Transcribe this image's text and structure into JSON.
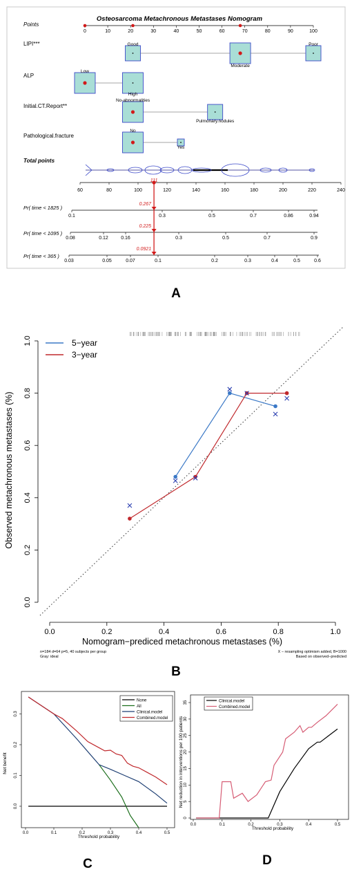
{
  "panels": {
    "a": "A",
    "b": "B",
    "c": "C",
    "d": "D"
  },
  "chart_data": [
    {
      "type": "nomogram",
      "panel": "A",
      "title": "Osteosarcoma Metachronous Metastases Nomogram",
      "points_axis": {
        "label": "Points",
        "ticks": [
          0,
          10,
          20,
          30,
          40,
          50,
          60,
          70,
          80,
          90,
          100
        ],
        "markers": [
          0,
          21,
          68
        ]
      },
      "variables": [
        {
          "name": "LIPI***",
          "levels": [
            {
              "label": "Good",
              "points": 21,
              "size": "small"
            },
            {
              "label": "Moderate",
              "points": 68,
              "size": "large"
            },
            {
              "label": "Poor",
              "points": 100,
              "size": "small"
            }
          ]
        },
        {
          "name": "ALP",
          "levels": [
            {
              "label": "Low",
              "points": 0,
              "size": "large"
            },
            {
              "label": "High",
              "points": 21,
              "size": "large"
            }
          ]
        },
        {
          "name": "Initial.CT.Report**",
          "levels": [
            {
              "label": "No-abnormalities",
              "points": 21,
              "size": "large"
            },
            {
              "label": "Pulmonary.nodules",
              "points": 57,
              "size": "small"
            }
          ]
        },
        {
          "name": "Pathological.fracture",
          "levels": [
            {
              "label": "No",
              "points": 21,
              "size": "large"
            },
            {
              "label": "Yes",
              "points": 42,
              "size": "tiny"
            }
          ]
        }
      ],
      "total_points": {
        "label": "Total points",
        "ticks": [
          60,
          80,
          100,
          120,
          140,
          160,
          180,
          200,
          220,
          240
        ],
        "marker": 111,
        "marker_label": "111"
      },
      "probabilities": [
        {
          "label": "Pr( time < 1825 )",
          "ticks": [
            "0.1",
            "0.3",
            "0.5",
            "0.7",
            "0.86",
            "0.94"
          ],
          "value": "0.267"
        },
        {
          "label": "Pr( time < 1095 )",
          "ticks": [
            "0.08",
            "0.12",
            "0.16",
            "0.3",
            "0.5",
            "0.7",
            "0.9"
          ],
          "value": "0.225"
        },
        {
          "label": "Pr( time < 365 )",
          "ticks": [
            "0.03",
            "0.05",
            "0.07",
            "0.1",
            "0.2",
            "0.3",
            "0.4",
            "0.5",
            "0.6"
          ],
          "value": "0.0921"
        }
      ]
    },
    {
      "type": "line",
      "panel": "B",
      "xlabel": "Nomogram−prediced metachronous metastases (%)",
      "ylabel": "Observed metachronous metastases (%)",
      "xlim": [
        0,
        1
      ],
      "ylim": [
        0,
        1
      ],
      "ticks": [
        "0.0",
        "0.2",
        "0.4",
        "0.6",
        "0.8",
        "1.0"
      ],
      "legend": "top-left",
      "series": [
        {
          "name": "5−year",
          "color": "#3a78c6",
          "x": [
            0.44,
            0.63,
            0.79
          ],
          "y": [
            0.48,
            0.8,
            0.75
          ],
          "x_cross": [
            0.44,
            0.63,
            0.79
          ],
          "y_cross": [
            0.465,
            0.815,
            0.72
          ]
        },
        {
          "name": "3−year",
          "color": "#c0282c",
          "x": [
            0.28,
            0.51,
            0.69,
            0.83
          ],
          "y": [
            0.32,
            0.48,
            0.8,
            0.8
          ],
          "x_cross": [
            0.28,
            0.51,
            0.69,
            0.83
          ],
          "y_cross": [
            0.37,
            0.475,
            0.8,
            0.78
          ]
        }
      ],
      "note_left_1": "n=184 d=64 p=5, 40 subjects per group",
      "note_left_2": "Gray: ideal",
      "note_right_1": "X − resampling optimism added, B=1000",
      "note_right_2": "Based on observed−predicted"
    },
    {
      "type": "line",
      "panel": "C",
      "xlabel": "Threshold probability",
      "ylabel": "Net benefit",
      "xlim": [
        0,
        0.5
      ],
      "ylim": [
        -0.06,
        0.36
      ],
      "x_ticks": [
        "0.0",
        "0.1",
        "0.2",
        "0.3",
        "0.4",
        "0.5"
      ],
      "y_ticks": [
        "0.0",
        "0.1",
        "0.2",
        "0.3"
      ],
      "legend": "top-right",
      "series": [
        {
          "name": "None",
          "color": "#000000",
          "x": [
            0.01,
            0.5
          ],
          "y": [
            0,
            0
          ]
        },
        {
          "name": "All",
          "color": "#1b6e1b",
          "x": [
            0.26,
            0.3,
            0.34,
            0.37,
            0.4
          ],
          "y": [
            0.135,
            0.085,
            0.03,
            -0.03,
            -0.07
          ]
        },
        {
          "name": "Clinical.model",
          "color": "#1e3f73",
          "x": [
            0.01,
            0.1,
            0.18,
            0.26,
            0.3,
            0.35,
            0.4,
            0.43,
            0.46,
            0.5
          ],
          "y": [
            0.355,
            0.3,
            0.22,
            0.135,
            0.12,
            0.1,
            0.08,
            0.06,
            0.04,
            0.01
          ]
        },
        {
          "name": "Combined.model",
          "color": "#c0282c",
          "x": [
            0.01,
            0.1,
            0.13,
            0.18,
            0.22,
            0.26,
            0.28,
            0.3,
            0.32,
            0.34,
            0.36,
            0.38,
            0.4,
            0.43,
            0.46,
            0.5
          ],
          "y": [
            0.355,
            0.3,
            0.285,
            0.245,
            0.21,
            0.19,
            0.18,
            0.182,
            0.17,
            0.165,
            0.14,
            0.13,
            0.125,
            0.11,
            0.095,
            0.07
          ]
        }
      ]
    },
    {
      "type": "line",
      "panel": "D",
      "xlabel": "Threshold probability",
      "ylabel": "Net reduction in interventions per 100 patients",
      "xlim": [
        0,
        0.5
      ],
      "ylim": [
        -1,
        36
      ],
      "x_ticks": [
        "0.0",
        "0.1",
        "0.2",
        "0.3",
        "0.4",
        "0.5"
      ],
      "y_ticks": [
        "0",
        "5",
        "10",
        "15",
        "20",
        "25",
        "30",
        "35"
      ],
      "legend": "top-left",
      "series": [
        {
          "name": "Clinical.model",
          "color": "#000000",
          "x": [
            0.01,
            0.25,
            0.26,
            0.3,
            0.35,
            0.4,
            0.43,
            0.44,
            0.47,
            0.5
          ],
          "y": [
            0,
            0,
            0,
            8,
            15,
            21,
            23,
            23,
            25,
            27
          ]
        },
        {
          "name": "Combined.model",
          "color": "#d65c74",
          "x": [
            0.01,
            0.09,
            0.1,
            0.13,
            0.14,
            0.17,
            0.19,
            0.22,
            0.25,
            0.27,
            0.28,
            0.31,
            0.32,
            0.35,
            0.37,
            0.38,
            0.4,
            0.41,
            0.43,
            0.46,
            0.5
          ],
          "y": [
            0,
            0,
            11,
            11,
            6,
            7.5,
            5,
            7,
            11,
            11.5,
            16,
            20,
            24,
            26,
            28,
            26,
            27.5,
            27.5,
            29,
            31,
            34.5
          ]
        }
      ]
    }
  ]
}
